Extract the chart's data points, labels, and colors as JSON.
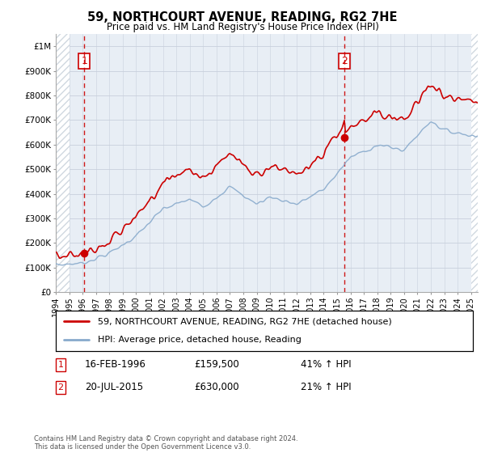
{
  "title": "59, NORTHCOURT AVENUE, READING, RG2 7HE",
  "subtitle": "Price paid vs. HM Land Registry's House Price Index (HPI)",
  "ylabel_ticks": [
    "£0",
    "£100K",
    "£200K",
    "£300K",
    "£400K",
    "£500K",
    "£600K",
    "£700K",
    "£800K",
    "£900K",
    "£1M"
  ],
  "ytick_values": [
    0,
    100000,
    200000,
    300000,
    400000,
    500000,
    600000,
    700000,
    800000,
    900000,
    1000000
  ],
  "ylim": [
    0,
    1050000
  ],
  "xlim_start": 1994.0,
  "xlim_end": 2025.5,
  "sale1_date": 1996.12,
  "sale1_price": 159500,
  "sale1_label": "1",
  "sale2_date": 2015.55,
  "sale2_price": 630000,
  "sale2_label": "2",
  "legend_line1": "59, NORTHCOURT AVENUE, READING, RG2 7HE (detached house)",
  "legend_line2": "HPI: Average price, detached house, Reading",
  "annotation1_label": "1",
  "annotation1_date": "16-FEB-1996",
  "annotation1_price": "£159,500",
  "annotation1_hpi": "41% ↑ HPI",
  "annotation2_label": "2",
  "annotation2_date": "20-JUL-2015",
  "annotation2_price": "£630,000",
  "annotation2_hpi": "21% ↑ HPI",
  "footer": "Contains HM Land Registry data © Crown copyright and database right 2024.\nThis data is licensed under the Open Government Licence v3.0.",
  "line_color_red": "#cc0000",
  "line_color_blue": "#88aacc",
  "bg_plot_color": "#e8eef5",
  "vline_color": "#cc0000",
  "box_color": "#cc0000",
  "hatch_color": "#d0d8e0",
  "grid_color": "#c8d0dc",
  "hatch_left_end": 1995.0,
  "hatch_right_start": 2025.0,
  "years_xtick": [
    1994,
    1995,
    1996,
    1997,
    1998,
    1999,
    2000,
    2001,
    2002,
    2003,
    2004,
    2005,
    2006,
    2007,
    2008,
    2009,
    2010,
    2011,
    2012,
    2013,
    2014,
    2015,
    2016,
    2017,
    2018,
    2019,
    2020,
    2021,
    2022,
    2023,
    2024,
    2025
  ]
}
